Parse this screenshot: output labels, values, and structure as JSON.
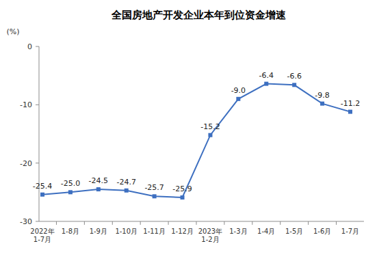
{
  "chart_data": {
    "type": "line",
    "title": "全国房地产开发企业本年到位资金增速",
    "ylabel": "(%)",
    "categories": [
      "2022年\n1-7月",
      "1-8月",
      "1-9月",
      "1-10月",
      "1-11月",
      "1-12月",
      "2023年\n1-2月",
      "1-3月",
      "1-4月",
      "1-5月",
      "1-6月",
      "1-7月"
    ],
    "values": [
      -25.4,
      -25.0,
      -24.5,
      -24.7,
      -25.7,
      -25.9,
      -15.2,
      -9.0,
      -6.4,
      -6.6,
      -9.8,
      -11.2
    ],
    "value_labels": [
      "-25.4",
      "-25.0",
      "-24.5",
      "-24.7",
      "-25.7",
      "-25.9",
      "-15.2",
      "-9.0",
      "-6.4",
      "-6.6",
      "-9.8",
      "-11.2"
    ],
    "color": "#3d6fc0",
    "marker": "square",
    "data_labels": true,
    "grid": false,
    "ylim": [
      -30,
      0
    ],
    "yticks": [
      0,
      -10,
      -20,
      -30
    ]
  }
}
